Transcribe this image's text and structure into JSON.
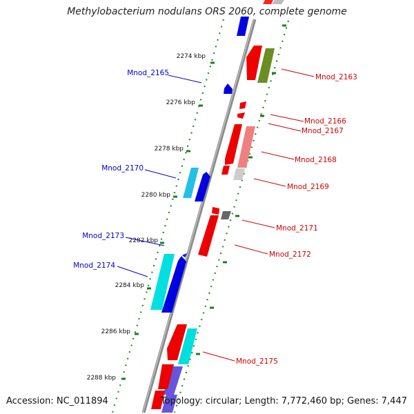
{
  "title": "Methylobacterium nodulans ORS 2060, complete genome",
  "footer": {
    "accession_label": "Accession:",
    "accession": "NC_011894",
    "topology_label": "Topology:",
    "topology": "circular",
    "length_label": "Length:",
    "length": "7,772,460 bp",
    "genes_label": "Genes:",
    "genes": "7,447"
  },
  "colors": {
    "backbone": "#8a8a8a",
    "tick": "#2e8b2e",
    "forward_label": "#0000cc",
    "reverse_label": "#cc0000"
  },
  "ticks": [
    "2274 kbp",
    "2276 kbp",
    "2278 kbp",
    "2280 kbp",
    "2282 kbp",
    "2284 kbp",
    "2286 kbp",
    "2288 kbp"
  ],
  "gene_labels_forward": [
    "Mnod_2165",
    "Mnod_2170",
    "Mnod_2173",
    "Mnod_2174"
  ],
  "gene_labels_reverse": [
    "Mnod_2163",
    "Mnod_2166",
    "Mnod_2167",
    "Mnod_2168",
    "Mnod_2169",
    "Mnod_2171",
    "Mnod_2172",
    "Mnod_2175"
  ]
}
